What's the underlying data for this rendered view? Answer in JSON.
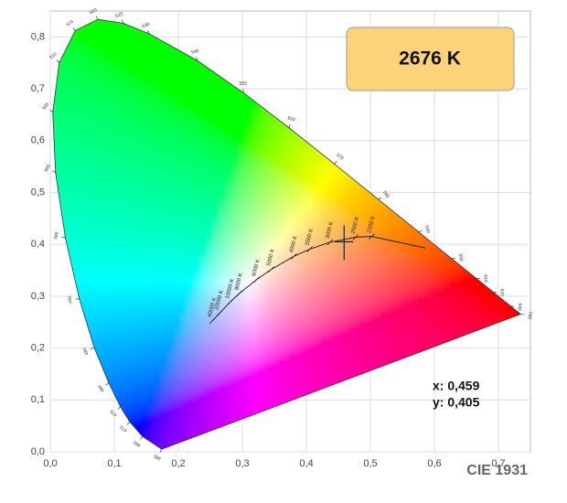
{
  "chart_data": {
    "type": "chromaticity",
    "cct_label": "2676 K",
    "footer": "CIE 1931",
    "x": [
      0.459
    ],
    "values": [
      0.405
    ],
    "x_labels": [
      "x: 0,459"
    ],
    "value_labels": [
      "y: 0,405"
    ],
    "xlim": [
      0,
      0.75
    ],
    "ylim": [
      0,
      0.85
    ],
    "xticks": [
      {
        "value": 0,
        "label": "0,0"
      },
      {
        "value": 0.1,
        "label": "0,1"
      },
      {
        "value": 0.2,
        "label": "0,2"
      },
      {
        "value": 0.3,
        "label": "0,3"
      },
      {
        "value": 0.4,
        "label": "0,4"
      },
      {
        "value": 0.5,
        "label": "0,5"
      },
      {
        "value": 0.6,
        "label": "0,6"
      },
      {
        "value": 0.7,
        "label": "0,7"
      }
    ],
    "yticks": [
      {
        "value": 0,
        "label": "0,0"
      },
      {
        "value": 0.1,
        "label": "0,1"
      },
      {
        "value": 0.2,
        "label": "0,2"
      },
      {
        "value": 0.3,
        "label": "0,3"
      },
      {
        "value": 0.4,
        "label": "0,4"
      },
      {
        "value": 0.5,
        "label": "0,5"
      },
      {
        "value": 0.6,
        "label": "0,6"
      },
      {
        "value": 0.7,
        "label": "0,7"
      },
      {
        "value": 0.8,
        "label": "0,8"
      }
    ],
    "grid": true,
    "spectral_locus": {
      "labels": [
        "380",
        "460",
        "470",
        "475",
        "480",
        "485",
        "490",
        "495",
        "500",
        "505",
        "510",
        "515",
        "520",
        "525",
        "530",
        "540",
        "550",
        "560",
        "570",
        "580",
        "590",
        "600",
        "610",
        "620",
        "640",
        "700"
      ],
      "x": [
        0.1741,
        0.144,
        0.1241,
        0.1096,
        0.0913,
        0.0687,
        0.0454,
        0.0235,
        0.0082,
        0.0039,
        0.0139,
        0.0389,
        0.0743,
        0.1142,
        0.1547,
        0.2296,
        0.3016,
        0.3731,
        0.4441,
        0.5125,
        0.5752,
        0.627,
        0.6658,
        0.6915,
        0.719,
        0.7347
      ],
      "y": [
        0.005,
        0.0297,
        0.0578,
        0.0868,
        0.1327,
        0.2007,
        0.295,
        0.4127,
        0.5384,
        0.6548,
        0.7502,
        0.812,
        0.8338,
        0.8262,
        0.8059,
        0.7543,
        0.6923,
        0.6245,
        0.5547,
        0.4866,
        0.4242,
        0.3725,
        0.334,
        0.3083,
        0.2809,
        0.2653
      ]
    },
    "planckian_locus": {
      "labels": [
        null,
        "2200 K",
        "2500 K",
        "3000 K",
        "3500 K",
        "4000 K",
        "5000 K",
        "6000 K",
        "8000 K",
        "10000 K",
        "20000 K",
        "40000 K"
      ],
      "x": [
        0.5857,
        0.502,
        0.477,
        0.4369,
        0.4053,
        0.3805,
        0.3451,
        0.3221,
        0.2951,
        0.2807,
        0.2637,
        0.2529
      ],
      "y": [
        0.3931,
        0.4152,
        0.4137,
        0.4041,
        0.3907,
        0.3768,
        0.3516,
        0.3318,
        0.305,
        0.2884,
        0.2664,
        0.2522
      ]
    }
  }
}
